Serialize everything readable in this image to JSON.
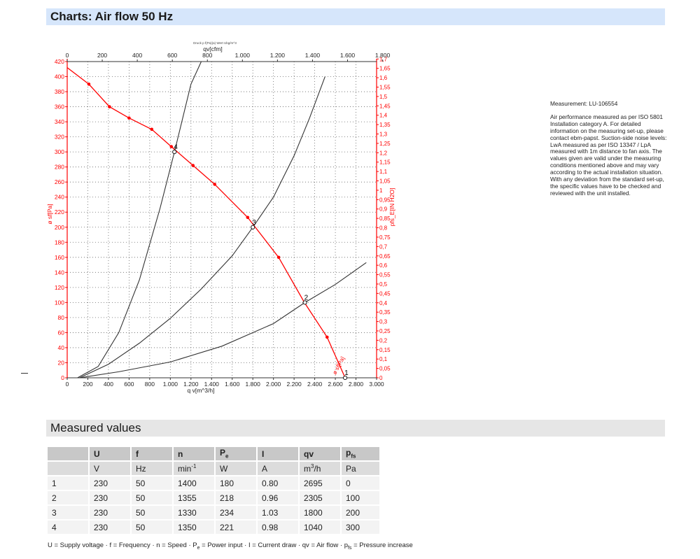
{
  "section_title": "Charts: Air flow 50 Hz",
  "measured_title": "Measured values",
  "notes": {
    "measurement": "Measurement: LU-106554",
    "description": "Air performance measured as per ISO 5801 Installation category A. For detailed information on the measuring set-up, please contact ebm-papst. Suction-side noise levels: LwA measured as per ISO 13347 / LpA measured with 1m distance to fan axis. The values given are valid under the measuring conditions mentioned above and may vary according to the actual installation situation. With any deviation from the standard set-up, the specific values have to be checked and reviewed with the unit installed."
  },
  "chart_data": {
    "type": "line",
    "top_small_label": "Druck p f(Pa)(a) Wert Ubg/m^3",
    "xlabel": "q v[m^3/h]",
    "x2label": "qv[cfm]",
    "ylabel": "ø sf[Pa]",
    "y2label": "pfs_E[IN H2O]",
    "xlim": [
      0,
      3000
    ],
    "x2lim": [
      0,
      1800
    ],
    "ylim": [
      0,
      420
    ],
    "y2lim": [
      0,
      1.7
    ],
    "x_ticks": [
      "0",
      "200",
      "400",
      "600",
      "800",
      "1.000",
      "1.200",
      "1.400",
      "1.600",
      "1.800",
      "2.000",
      "2.200",
      "2.400",
      "2.600",
      "2.800",
      "3.000"
    ],
    "x2_ticks": [
      "0",
      "200",
      "400",
      "600",
      "800",
      "1.000",
      "1.200",
      "1.400",
      "1.600",
      "1.800"
    ],
    "y_ticks": [
      "0",
      "20",
      "40",
      "60",
      "80",
      "100",
      "120",
      "140",
      "160",
      "180",
      "200",
      "220",
      "240",
      "260",
      "280",
      "300",
      "320",
      "340",
      "360",
      "380",
      "400",
      "420"
    ],
    "y2_ticks": [
      "0",
      "0,05",
      "0,1",
      "0,15",
      "0,2",
      "0,25",
      "0,3",
      "0,35",
      "0,4",
      "0,45",
      "0,5",
      "0,55",
      "0,6",
      "0,65",
      "0,7",
      "0,75",
      "0,8",
      "0,85",
      "0,9",
      "0,95",
      "1",
      "1,05",
      "1,1",
      "1,15",
      "1,2",
      "1,25",
      "1,3",
      "1,35",
      "1,4",
      "1,45",
      "1,5",
      "1,55",
      "1,6",
      "1,65",
      "1,7"
    ],
    "grid": true,
    "curve_label": "ø sf[Pa]",
    "series": [
      {
        "color": "#ff0000",
        "x": [
          0,
          210,
          410,
          600,
          820,
          1010,
          1220,
          1430,
          1750,
          2050,
          2300,
          2520,
          2695
        ],
        "y": [
          412,
          390,
          360,
          345,
          330,
          307,
          282,
          257,
          213,
          160,
          100,
          54,
          0
        ],
        "markers": true
      },
      {
        "color": "#333333",
        "x": [
          100,
          300,
          500,
          700,
          900,
          1040,
          1200,
          1300
        ],
        "y": [
          0,
          15,
          60,
          130,
          225,
          300,
          390,
          420
        ]
      },
      {
        "color": "#333333",
        "x": [
          120,
          400,
          700,
          1000,
          1300,
          1600,
          1800,
          2000,
          2200,
          2350,
          2500
        ],
        "y": [
          0,
          18,
          46,
          79,
          118,
          162,
          200,
          240,
          295,
          345,
          400
        ]
      },
      {
        "color": "#333333",
        "x": [
          120,
          500,
          1000,
          1500,
          2000,
          2305,
          2600,
          2900
        ],
        "y": [
          0,
          8,
          21,
          42,
          72,
          100,
          124,
          153
        ]
      }
    ],
    "operating_points": [
      {
        "label": "1",
        "x": 2695,
        "y": 0
      },
      {
        "label": "2",
        "x": 2305,
        "y": 100
      },
      {
        "label": "3",
        "x": 1800,
        "y": 200
      },
      {
        "label": "4",
        "x": 1040,
        "y": 300
      }
    ]
  },
  "table": {
    "headers": [
      "",
      "U",
      "f",
      "n",
      "P",
      "I",
      "qv",
      "p"
    ],
    "header_subs": [
      "",
      "",
      "",
      "",
      "e",
      "",
      "",
      "fs"
    ],
    "units": [
      "",
      "V",
      "Hz",
      "min",
      "W",
      "A",
      "m",
      "Pa"
    ],
    "unit_sups": [
      "",
      "",
      "",
      "-1",
      "",
      "",
      "3",
      ""
    ],
    "unit_tails": [
      "",
      "",
      "",
      "",
      "",
      "",
      "/h",
      ""
    ],
    "rows": [
      [
        "1",
        "230",
        "50",
        "1400",
        "180",
        "0.80",
        "2695",
        "0"
      ],
      [
        "2",
        "230",
        "50",
        "1355",
        "218",
        "0.96",
        "2305",
        "100"
      ],
      [
        "3",
        "230",
        "50",
        "1330",
        "234",
        "1.03",
        "1800",
        "200"
      ],
      [
        "4",
        "230",
        "50",
        "1350",
        "221",
        "0.98",
        "1040",
        "300"
      ]
    ]
  },
  "legend_parts": [
    {
      "t": "U = Supply voltage · f = Frequency · n = Speed · P"
    },
    {
      "t": "e",
      "sub": true
    },
    {
      "t": " = Power input · I = Current draw · qv = Air flow · p"
    },
    {
      "t": "fs",
      "sub": true
    },
    {
      "t": " = Pressure increase"
    }
  ]
}
